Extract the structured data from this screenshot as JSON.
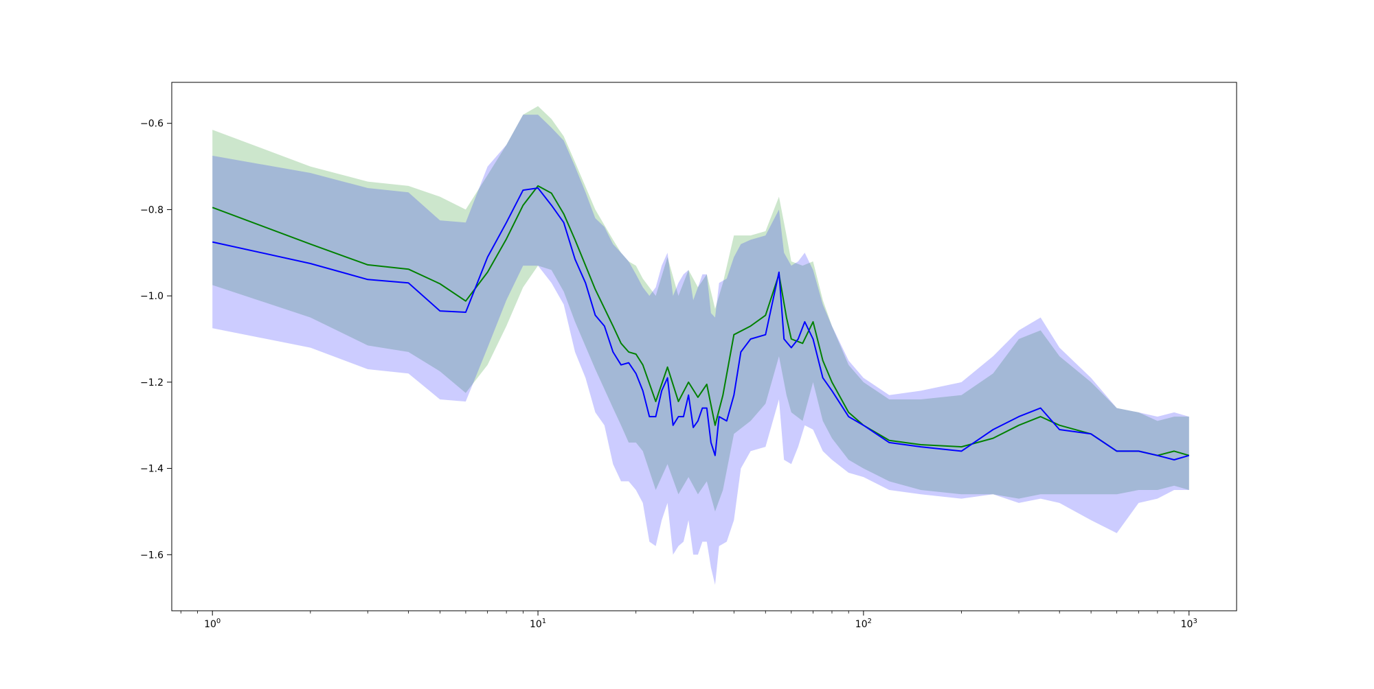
{
  "chart_data": {
    "type": "line",
    "title": "",
    "xlabel": "",
    "ylabel": "",
    "xscale": "log",
    "xlim": [
      0.75,
      1400
    ],
    "ylim": [
      -1.73,
      -0.505
    ],
    "grid": false,
    "x_ticks": [
      {
        "value": 1,
        "base": "10",
        "exp": "0"
      },
      {
        "value": 10,
        "base": "10",
        "exp": "1"
      },
      {
        "value": 100,
        "base": "10",
        "exp": "2"
      },
      {
        "value": 1000,
        "base": "10",
        "exp": "3"
      }
    ],
    "y_ticks": [
      {
        "value": -0.6,
        "label": "−0.6"
      },
      {
        "value": -0.8,
        "label": "−0.8"
      },
      {
        "value": -1.0,
        "label": "−1.0"
      },
      {
        "value": -1.2,
        "label": "−1.2"
      },
      {
        "value": -1.4,
        "label": "−1.4"
      },
      {
        "value": -1.6,
        "label": "−1.6"
      }
    ],
    "series": [
      {
        "color": "#008000",
        "band_color": "#008000",
        "band_opacity": 0.2,
        "x": [
          1,
          2,
          3,
          4,
          5,
          6,
          7,
          8,
          9,
          10,
          11,
          12,
          13,
          15,
          17,
          18,
          19,
          20,
          21,
          23,
          25,
          27,
          29,
          31,
          33,
          35,
          37,
          40,
          45,
          50,
          55,
          58,
          60,
          65,
          70,
          75,
          80,
          90,
          100,
          120,
          150,
          200,
          250,
          300,
          350,
          400,
          500,
          600,
          700,
          800,
          900,
          1000
        ],
        "mean": [
          -0.795,
          -0.88,
          -0.928,
          -0.938,
          -0.972,
          -1.012,
          -0.945,
          -0.868,
          -0.79,
          -0.745,
          -0.762,
          -0.81,
          -0.87,
          -0.985,
          -1.07,
          -1.11,
          -1.13,
          -1.135,
          -1.16,
          -1.245,
          -1.165,
          -1.245,
          -1.2,
          -1.235,
          -1.205,
          -1.3,
          -1.23,
          -1.09,
          -1.07,
          -1.045,
          -0.95,
          -1.05,
          -1.1,
          -1.11,
          -1.06,
          -1.15,
          -1.2,
          -1.27,
          -1.3,
          -1.335,
          -1.345,
          -1.35,
          -1.33,
          -1.3,
          -1.28,
          -1.3,
          -1.32,
          -1.36,
          -1.36,
          -1.37,
          -1.36,
          -1.37
        ],
        "upper": [
          -0.615,
          -0.7,
          -0.735,
          -0.745,
          -0.77,
          -0.8,
          -0.72,
          -0.65,
          -0.58,
          -0.56,
          -0.59,
          -0.63,
          -0.69,
          -0.8,
          -0.87,
          -0.9,
          -0.92,
          -0.93,
          -0.96,
          -1.0,
          -0.91,
          -1.0,
          -0.94,
          -0.98,
          -0.95,
          -1.03,
          -0.97,
          -0.86,
          -0.86,
          -0.85,
          -0.77,
          -0.86,
          -0.92,
          -0.93,
          -0.92,
          -1.01,
          -1.07,
          -1.16,
          -1.2,
          -1.24,
          -1.24,
          -1.23,
          -1.18,
          -1.1,
          -1.08,
          -1.14,
          -1.2,
          -1.26,
          -1.27,
          -1.29,
          -1.28,
          -1.28
        ],
        "lower": [
          -0.975,
          -1.05,
          -1.115,
          -1.13,
          -1.175,
          -1.225,
          -1.16,
          -1.07,
          -0.98,
          -0.93,
          -0.94,
          -0.99,
          -1.06,
          -1.17,
          -1.26,
          -1.3,
          -1.34,
          -1.34,
          -1.36,
          -1.45,
          -1.39,
          -1.46,
          -1.42,
          -1.46,
          -1.43,
          -1.5,
          -1.45,
          -1.32,
          -1.29,
          -1.25,
          -1.14,
          -1.23,
          -1.27,
          -1.29,
          -1.2,
          -1.29,
          -1.33,
          -1.38,
          -1.4,
          -1.43,
          -1.45,
          -1.46,
          -1.46,
          -1.47,
          -1.46,
          -1.46,
          -1.46,
          -1.46,
          -1.45,
          -1.45,
          -1.44,
          -1.45
        ]
      },
      {
        "color": "#0000ff",
        "band_color": "#0000ff",
        "band_opacity": 0.2,
        "x": [
          1,
          2,
          3,
          4,
          5,
          6,
          7,
          8,
          9,
          10,
          11,
          12,
          13,
          14,
          15,
          16,
          17,
          18,
          19,
          20,
          21,
          22,
          23,
          24,
          25,
          26,
          27,
          28,
          29,
          30,
          31,
          32,
          33,
          34,
          35,
          36,
          38,
          40,
          42,
          45,
          50,
          55,
          57,
          60,
          63,
          66,
          70,
          75,
          80,
          90,
          100,
          120,
          150,
          200,
          250,
          300,
          350,
          400,
          500,
          600,
          700,
          800,
          900,
          1000
        ],
        "mean": [
          -0.875,
          -0.925,
          -0.962,
          -0.97,
          -1.035,
          -1.038,
          -0.91,
          -0.83,
          -0.755,
          -0.75,
          -0.79,
          -0.83,
          -0.915,
          -0.97,
          -1.045,
          -1.07,
          -1.13,
          -1.16,
          -1.155,
          -1.18,
          -1.22,
          -1.28,
          -1.28,
          -1.22,
          -1.19,
          -1.3,
          -1.28,
          -1.28,
          -1.23,
          -1.305,
          -1.29,
          -1.26,
          -1.26,
          -1.34,
          -1.37,
          -1.28,
          -1.29,
          -1.23,
          -1.13,
          -1.1,
          -1.09,
          -0.945,
          -1.1,
          -1.12,
          -1.1,
          -1.06,
          -1.1,
          -1.19,
          -1.22,
          -1.28,
          -1.3,
          -1.34,
          -1.35,
          -1.36,
          -1.31,
          -1.28,
          -1.26,
          -1.31,
          -1.32,
          -1.36,
          -1.36,
          -1.37,
          -1.38,
          -1.37
        ],
        "upper": [
          -0.675,
          -0.715,
          -0.75,
          -0.76,
          -0.825,
          -0.83,
          -0.7,
          -0.65,
          -0.58,
          -0.58,
          -0.61,
          -0.64,
          -0.7,
          -0.76,
          -0.82,
          -0.84,
          -0.88,
          -0.9,
          -0.92,
          -0.95,
          -0.98,
          -1.0,
          -0.98,
          -0.93,
          -0.9,
          -1.0,
          -0.97,
          -0.95,
          -0.94,
          -1.01,
          -0.98,
          -0.95,
          -0.95,
          -1.04,
          -1.05,
          -0.97,
          -0.96,
          -0.91,
          -0.88,
          -0.87,
          -0.86,
          -0.8,
          -0.9,
          -0.93,
          -0.92,
          -0.9,
          -0.94,
          -1.02,
          -1.07,
          -1.15,
          -1.19,
          -1.23,
          -1.22,
          -1.2,
          -1.14,
          -1.08,
          -1.05,
          -1.12,
          -1.19,
          -1.26,
          -1.27,
          -1.28,
          -1.27,
          -1.28
        ],
        "lower": [
          -1.075,
          -1.12,
          -1.17,
          -1.18,
          -1.24,
          -1.245,
          -1.12,
          -1.01,
          -0.93,
          -0.93,
          -0.97,
          -1.02,
          -1.13,
          -1.19,
          -1.27,
          -1.3,
          -1.39,
          -1.43,
          -1.43,
          -1.45,
          -1.48,
          -1.57,
          -1.58,
          -1.52,
          -1.48,
          -1.6,
          -1.58,
          -1.57,
          -1.52,
          -1.6,
          -1.6,
          -1.57,
          -1.57,
          -1.63,
          -1.67,
          -1.58,
          -1.57,
          -1.52,
          -1.4,
          -1.36,
          -1.35,
          -1.24,
          -1.38,
          -1.39,
          -1.35,
          -1.3,
          -1.31,
          -1.36,
          -1.38,
          -1.41,
          -1.42,
          -1.45,
          -1.46,
          -1.47,
          -1.46,
          -1.48,
          -1.47,
          -1.48,
          -1.52,
          -1.55,
          -1.48,
          -1.47,
          -1.45,
          -1.45
        ]
      }
    ]
  }
}
